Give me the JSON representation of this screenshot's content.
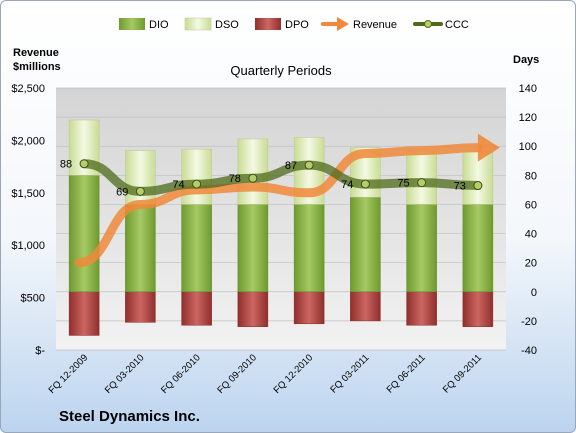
{
  "chart_data": {
    "type": "bar",
    "subtitle": "Quarterly Periods",
    "company": "Steel Dynamics Inc.",
    "left_axis_label": [
      "Revenue",
      "$millions"
    ],
    "right_axis_label": "Days",
    "categories": [
      "FQ 12-2009",
      "FQ 03-2010",
      "FQ 06-2010",
      "FQ 09-2010",
      "FQ 12-2010",
      "FQ 03-2011",
      "FQ 06-2011",
      "FQ 09-2011"
    ],
    "left_ticks": [
      "$-",
      "$500",
      "$1,000",
      "$1,500",
      "$2,000",
      "$2,500"
    ],
    "left_ylim": [
      0,
      2500
    ],
    "right_ticks": [
      "-40",
      "-20",
      "0",
      "20",
      "40",
      "60",
      "80",
      "100",
      "120",
      "140"
    ],
    "right_ylim": [
      -40,
      140
    ],
    "legend_position": "top",
    "series": [
      {
        "name": "DIO",
        "kind": "bar",
        "values": [
          80,
          60,
          60,
          60,
          60,
          65,
          60,
          60
        ],
        "color": "#8cb34a"
      },
      {
        "name": "DSO",
        "kind": "bar",
        "values": [
          38,
          37,
          38,
          45,
          46,
          34,
          37,
          36
        ],
        "color": "#e6efc5"
      },
      {
        "name": "DPO",
        "kind": "bar",
        "values": [
          -30,
          -21,
          -23,
          -24,
          -22,
          -20,
          -23,
          -24
        ],
        "color": "#c0504d"
      },
      {
        "name": "Revenue",
        "kind": "arrow",
        "values": [
          20,
          60,
          70,
          72,
          68,
          95,
          97,
          99
        ],
        "color": "#f0883a"
      },
      {
        "name": "CCC",
        "kind": "line",
        "values": [
          88,
          69,
          74,
          78,
          87,
          74,
          75,
          73
        ],
        "labels": [
          "88",
          "69",
          "74",
          "78",
          "87",
          "74",
          "75",
          "73"
        ],
        "color": "#4e6a1a"
      }
    ]
  }
}
